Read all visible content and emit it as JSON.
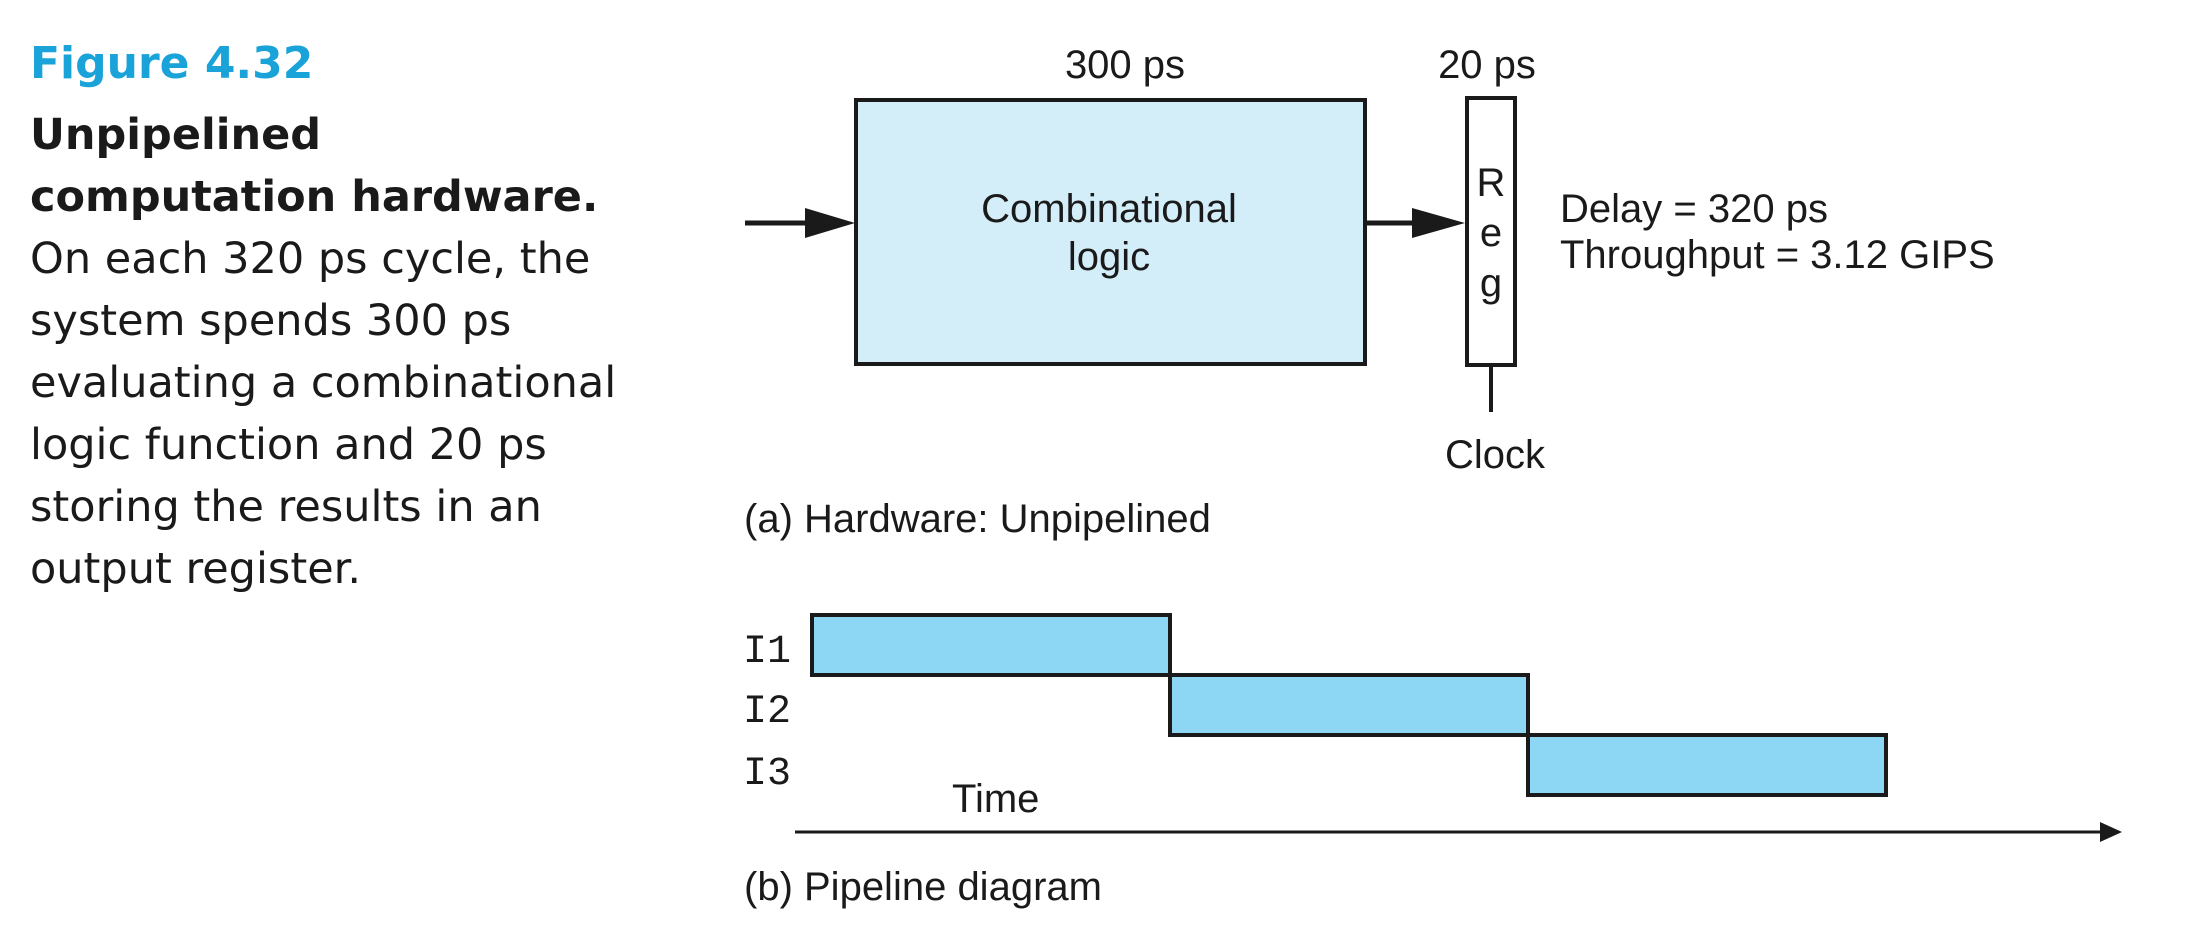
{
  "caption": {
    "figure_label": "Figure 4.32",
    "bold_lead": "Unpipelined computation hardware.",
    "body": " On each 320 ps cycle, the system spends 300 ps evaluating a combinational logic function and 20 ps storing the results in an output register."
  },
  "hardware": {
    "logic_delay": "300 ps",
    "reg_delay": "20 ps",
    "logic_label_line1": "Combinational",
    "logic_label_line2": "logic",
    "reg_letters": [
      "R",
      "e",
      "g"
    ],
    "clock_label": "Clock",
    "delay_text": "Delay = 320 ps",
    "throughput_text": "Throughput = 3.12 GIPS",
    "subcaption": "(a) Hardware: Unpipelined"
  },
  "pipeline": {
    "instructions": [
      "I1",
      "I2",
      "I3"
    ],
    "time_label": "Time",
    "subcaption": "(b) Pipeline diagram"
  },
  "colors": {
    "accent": "#1aa3d9",
    "logic_fill": "#d3eef9",
    "stage_fill": "#8dd6f4"
  }
}
